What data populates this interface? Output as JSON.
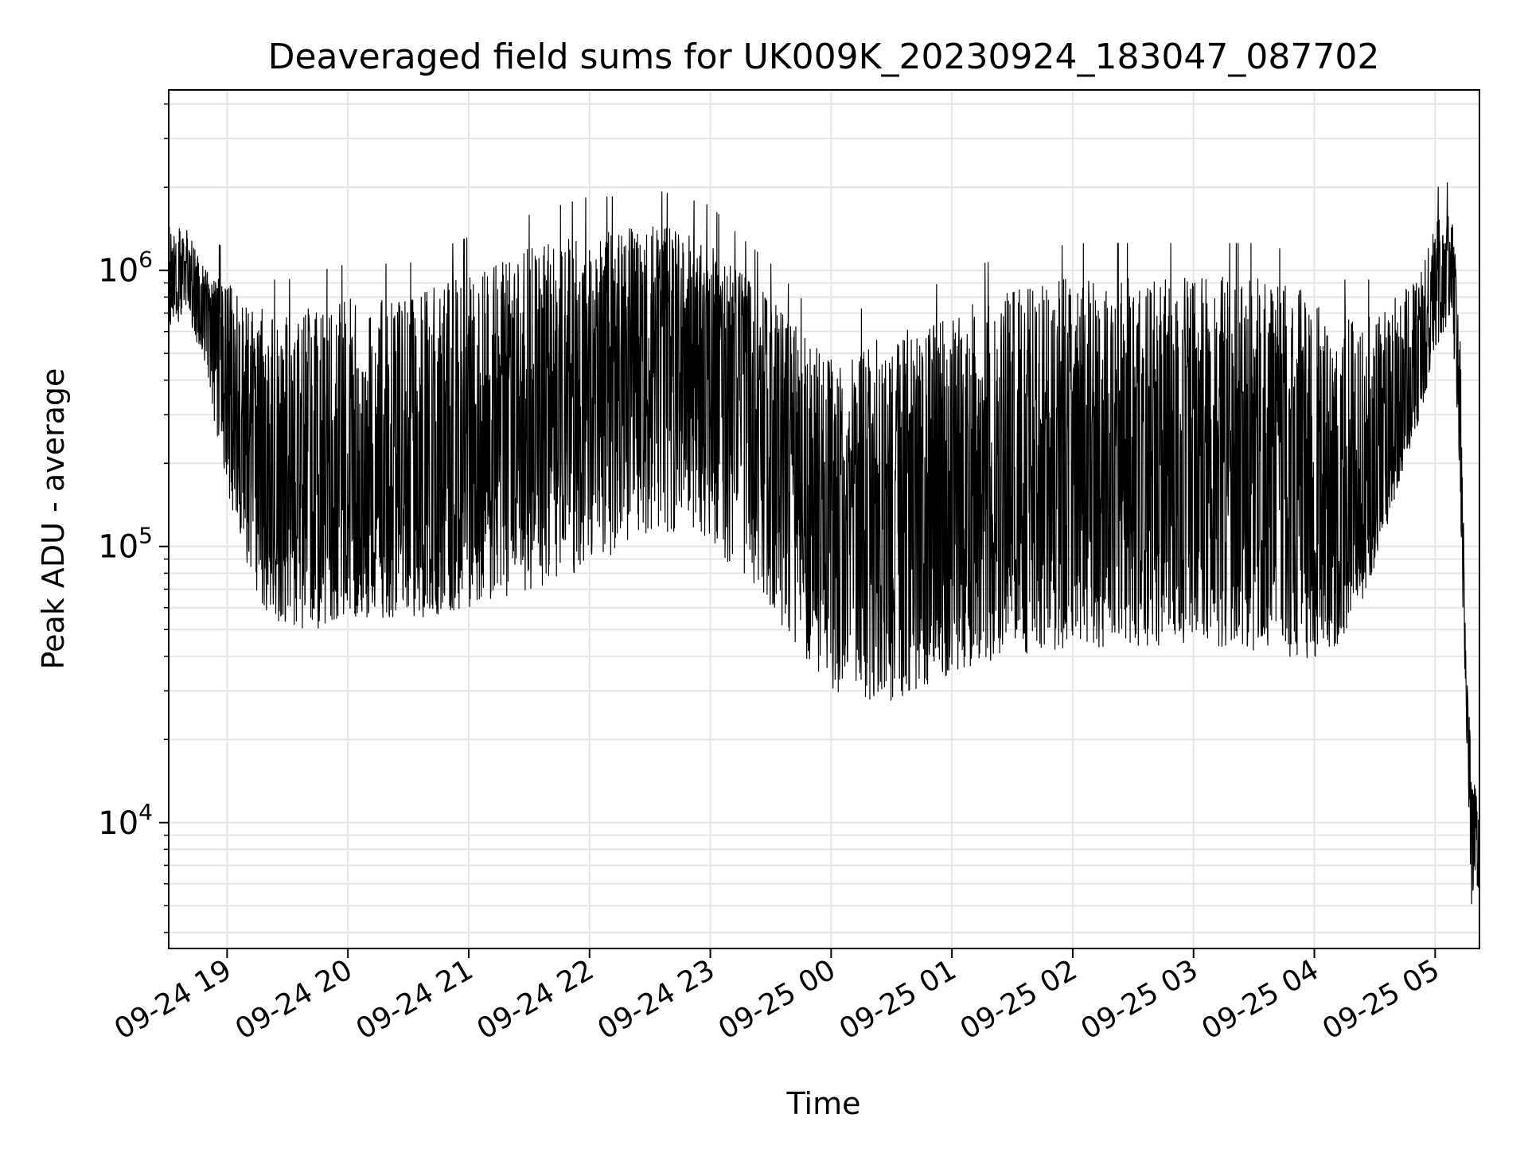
{
  "chart_data": {
    "type": "line",
    "title": "Deaveraged field sums for UK009K_20230924_183047_087702",
    "xlabel": "Time",
    "ylabel": "Peak ADU - average",
    "x_scale": "time",
    "y_scale": "log",
    "xlim": [
      "09-24 18:31",
      "09-25 05:22"
    ],
    "ylim": [
      3500,
      4500000
    ],
    "x_ticks": [
      "09-24 19",
      "09-24 20",
      "09-24 21",
      "09-24 22",
      "09-24 23",
      "09-25 00",
      "09-25 01",
      "09-25 02",
      "09-25 03",
      "09-25 04",
      "09-25 05"
    ],
    "y_ticks": [
      10000,
      100000,
      1000000
    ],
    "y_tick_labels": [
      {
        "base": "10",
        "exp": "4"
      },
      {
        "base": "10",
        "exp": "5"
      },
      {
        "base": "10",
        "exp": "6"
      }
    ],
    "grid": true,
    "line_color": "#000000",
    "grid_color": "#e6e6e6",
    "series": [
      {
        "x": [
          "09-24 18:31",
          "09-24 18:40",
          "09-24 18:50",
          "09-24 19:00",
          "09-24 19:10",
          "09-24 19:20",
          "09-24 19:30",
          "09-24 19:45",
          "09-24 20:00",
          "09-24 20:15",
          "09-24 20:30",
          "09-24 20:45",
          "09-24 21:00",
          "09-24 21:15",
          "09-24 21:30",
          "09-24 21:45",
          "09-24 22:00",
          "09-24 22:15",
          "09-24 22:30",
          "09-24 22:45",
          "09-24 23:00",
          "09-24 23:15",
          "09-24 23:30",
          "09-24 23:45",
          "09-25 00:00",
          "09-25 00:15",
          "09-25 00:30",
          "09-25 00:45",
          "09-25 01:00",
          "09-25 01:15",
          "09-25 01:30",
          "09-25 01:45",
          "09-25 02:00",
          "09-25 02:15",
          "09-25 02:30",
          "09-25 02:45",
          "09-25 03:00",
          "09-25 03:15",
          "09-25 03:30",
          "09-25 03:45",
          "09-25 04:00",
          "09-25 04:15",
          "09-25 04:30",
          "09-25 04:40",
          "09-25 04:50",
          "09-25 05:00",
          "09-25 05:08",
          "09-25 05:12",
          "09-25 05:15",
          "09-25 05:18",
          "09-25 05:22"
        ],
        "values": [
          900000,
          1000000,
          800000,
          400000,
          250000,
          180000,
          150000,
          140000,
          150000,
          160000,
          160000,
          170000,
          190000,
          220000,
          250000,
          300000,
          380000,
          450000,
          500000,
          520000,
          450000,
          350000,
          250000,
          150000,
          100000,
          90000,
          85000,
          90000,
          110000,
          130000,
          140000,
          150000,
          150000,
          160000,
          160000,
          160000,
          150000,
          150000,
          150000,
          140000,
          130000,
          110000,
          150000,
          250000,
          350000,
          800000,
          1100000,
          400000,
          40000,
          12000,
          9000
        ],
        "envelope_high": [
          1500000,
          1400000,
          1000000,
          900000,
          800000,
          700000,
          700000,
          750000,
          800000,
          800000,
          800000,
          900000,
          1000000,
          1100000,
          1200000,
          1300000,
          1400000,
          1400000,
          1500000,
          1400000,
          1300000,
          1000000,
          800000,
          600000,
          500000,
          550000,
          600000,
          650000,
          700000,
          800000,
          850000,
          900000,
          950000,
          950000,
          950000,
          950000,
          950000,
          950000,
          950000,
          900000,
          850000,
          700000,
          700000,
          800000,
          900000,
          1500000,
          1600000,
          800000,
          60000,
          15000,
          12000
        ],
        "envelope_low": [
          600000,
          700000,
          400000,
          150000,
          80000,
          55000,
          50000,
          50000,
          55000,
          55000,
          55000,
          55000,
          60000,
          65000,
          70000,
          75000,
          85000,
          95000,
          105000,
          110000,
          100000,
          80000,
          60000,
          40000,
          30000,
          28000,
          27000,
          30000,
          35000,
          38000,
          40000,
          42000,
          42000,
          43000,
          43000,
          43000,
          42000,
          42000,
          42000,
          40000,
          38000,
          45000,
          80000,
          150000,
          250000,
          500000,
          700000,
          200000,
          25000,
          5000,
          6000
        ]
      }
    ]
  }
}
